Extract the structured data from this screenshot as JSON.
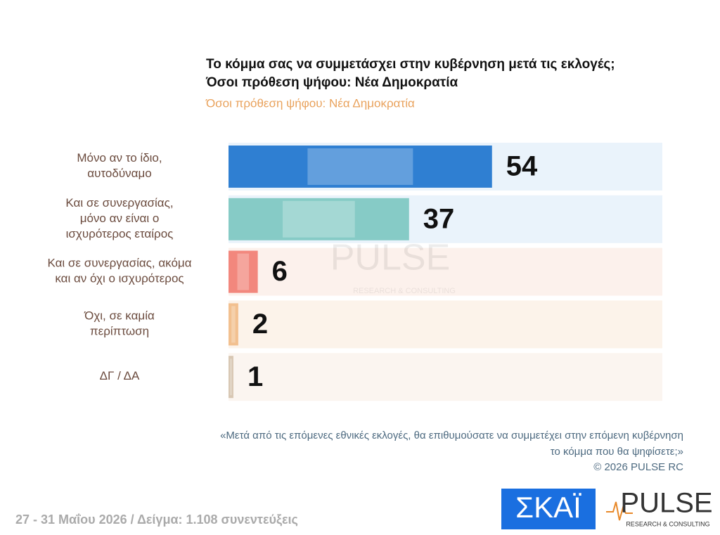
{
  "chart_data": {
    "type": "bar",
    "title": [
      "Το κόμμα σας να συμμετάσχει στην κυβέρνηση μετά τις εκλογές;",
      "Όσοι πρόθεση ψήφου: Νέα Δημοκρατία"
    ],
    "subtitle": "Όσοι πρόθεση ψήφου: Νέα Δημοκρατία",
    "categories": [
      "Μόνο αν το ίδιο,\nαυτοδύναμο",
      "Και σε συνεργασίας,\nμόνο αν είναι ο\nισχυρότερος εταίρος",
      "Και σε συνεργασίας, ακόμα\nκαι αν όχι ο ισχυρότερος",
      "Όχι, σε καμία\nπερίπτωση",
      "ΔΓ / ΔΑ"
    ],
    "values": [
      54,
      37,
      6,
      2,
      1
    ],
    "colors": [
      "#2f7fd2",
      "#86cbc6",
      "#f2877d",
      "#f2c08f",
      "#d8c7b3"
    ],
    "row_colors": [
      "#eaf3fb",
      "#eaf3fb",
      "#fcf1ec",
      "#fcf3ea",
      "#fbf5f0"
    ],
    "note": [
      "«Μετά από τις επόμενες εθνικές εκλογές, θα επιθυμούσατε να συμμετέχει στην επόμενη κυβέρνηση",
      "το κόμμα που θα ψηφίσετε;»",
      "©  2026  PULSE RC"
    ],
    "footer": "27 - 31  Μαΐου 2026  /  Δείγμα:  1.108 συνεντεύξεις"
  },
  "logos": {
    "skai": "ΣΚΑΪ",
    "pulse": "PULSE",
    "pulse_sub": "RESEARCH & CONSULTING"
  }
}
